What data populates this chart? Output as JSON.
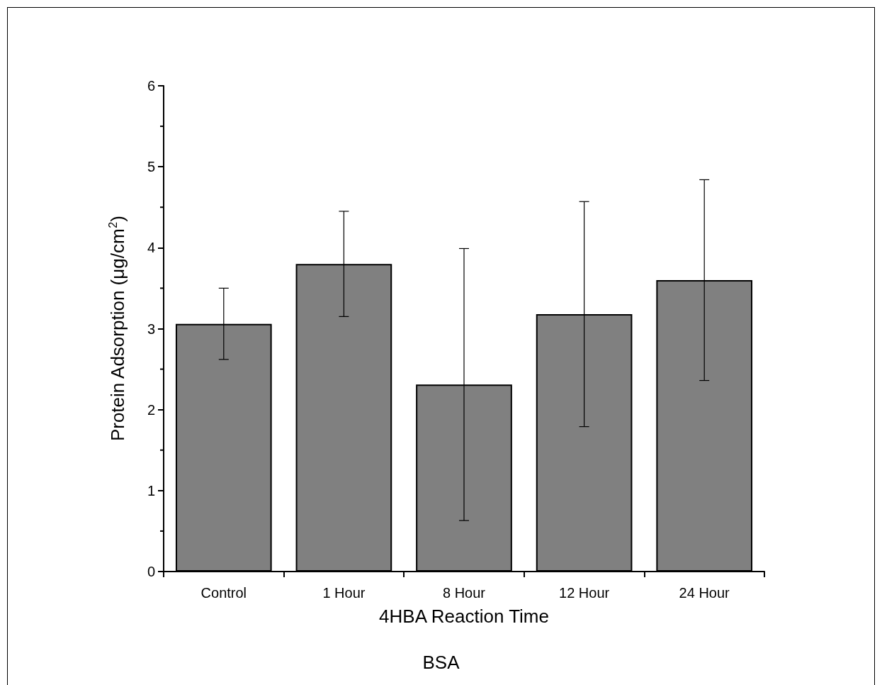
{
  "chart_data": {
    "type": "bar",
    "xlabel": "4HBA Reaction Time",
    "ylabel": "Protein Adsorption (μg/cm$^{2}$)",
    "annotations": [
      "BSA"
    ],
    "categories": [
      "Control",
      "1 Hour",
      "8 Hour",
      "12 Hour",
      "24 Hour"
    ],
    "values": [
      3.06,
      3.8,
      2.31,
      3.18,
      3.6
    ],
    "errors": [
      0.44,
      0.65,
      1.68,
      1.39,
      1.24
    ],
    "color": "#808080",
    "ylim": [
      0,
      6
    ],
    "yticks": [
      0,
      1,
      2,
      3,
      4,
      5,
      6
    ]
  }
}
